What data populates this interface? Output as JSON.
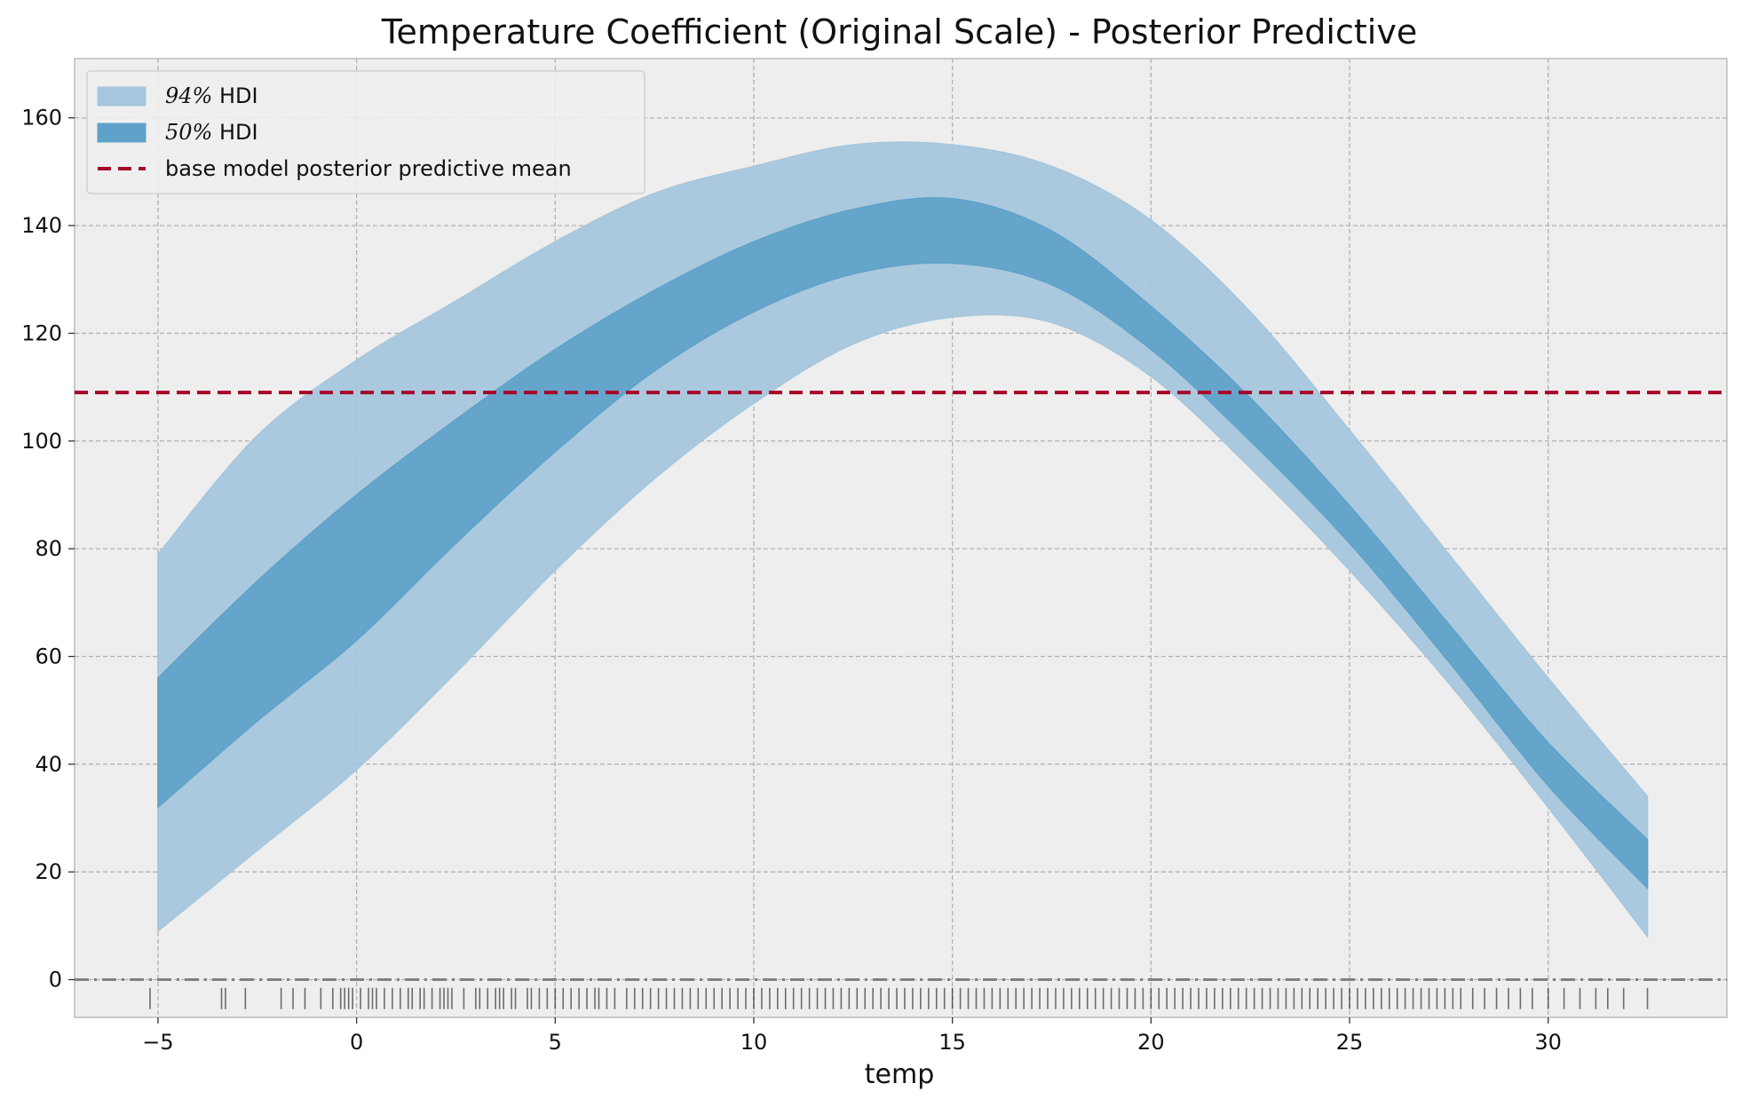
{
  "chart_data": {
    "type": "area",
    "title": "Temperature Coefficient (Original Scale) - Posterior Predictive",
    "xlabel": "temp",
    "ylabel": "",
    "xlim": [
      -7.1,
      34.5
    ],
    "ylim": [
      -7,
      171
    ],
    "xticks": [
      -5,
      0,
      5,
      10,
      15,
      20,
      25,
      30
    ],
    "xtick_labels": [
      "−5",
      "0",
      "5",
      "10",
      "15",
      "20",
      "25",
      "30"
    ],
    "yticks": [
      0,
      20,
      40,
      60,
      80,
      100,
      120,
      140,
      160
    ],
    "ytick_labels": [
      "0",
      "20",
      "40",
      "60",
      "80",
      "100",
      "120",
      "140",
      "160"
    ],
    "grid": true,
    "legend_position": "top-left",
    "legend": [
      {
        "math": "94%",
        "text": " HDI",
        "series": "hdi94"
      },
      {
        "math": "50%",
        "text": " HDI",
        "series": "hdi50"
      },
      {
        "math": "",
        "text": "base model posterior predictive mean",
        "series": "base_mean"
      }
    ],
    "x": [
      -5,
      -2.5,
      0,
      2.5,
      5,
      7.5,
      10,
      12.5,
      15,
      17.5,
      20,
      22.5,
      25,
      27.5,
      30,
      32.5
    ],
    "series": [
      {
        "name": "94% HDI",
        "key": "hdi94",
        "color": "#a5c6dc",
        "lower": [
          9,
          24,
          39,
          57,
          76,
          93,
          107,
          118,
          123,
          122,
          112,
          95,
          76,
          55,
          32,
          8
        ],
        "upper": [
          79,
          101,
          115,
          126,
          137,
          146,
          151,
          155,
          155,
          151,
          141,
          124,
          102,
          79,
          56,
          34
        ]
      },
      {
        "name": "50% HDI",
        "key": "hdi50",
        "color": "#5fa2c9",
        "lower": [
          32,
          48,
          63,
          81,
          98,
          113,
          124,
          131,
          133,
          129,
          117,
          100,
          81,
          59,
          36,
          17
        ],
        "upper": [
          56,
          74,
          90,
          104,
          117,
          128,
          137,
          143,
          145,
          139,
          125,
          108,
          88,
          66,
          44,
          26
        ]
      },
      {
        "name": "base model posterior predictive mean",
        "key": "base_mean",
        "color": "#a60628",
        "style": "dashed",
        "y": 109
      }
    ],
    "reference_line": {
      "y": 0,
      "style": "dashdot",
      "color": "#808080"
    },
    "rug": [
      -5.2,
      -3.4,
      -3.3,
      -2.8,
      -1.9,
      -1.6,
      -1.3,
      -0.9,
      -0.6,
      -0.4,
      -0.3,
      -0.2,
      -0.1,
      0.1,
      0.3,
      0.4,
      0.5,
      0.7,
      0.9,
      1.1,
      1.3,
      1.4,
      1.6,
      1.7,
      1.9,
      2.1,
      2.2,
      2.3,
      2.4,
      2.7,
      3.0,
      3.1,
      3.3,
      3.5,
      3.6,
      3.7,
      3.9,
      4.0,
      4.3,
      4.4,
      4.6,
      4.8,
      5.0,
      5.2,
      5.4,
      5.6,
      5.8,
      6.0,
      6.1,
      6.3,
      6.5,
      6.8,
      7.0,
      7.2,
      7.4,
      7.6,
      7.8,
      8.0,
      8.2,
      8.4,
      8.6,
      8.8,
      9.0,
      9.2,
      9.4,
      9.6,
      9.8,
      10.0,
      10.2,
      10.4,
      10.6,
      10.8,
      11.0,
      11.2,
      11.4,
      11.6,
      11.8,
      12.0,
      12.2,
      12.4,
      12.6,
      12.8,
      13.0,
      13.2,
      13.4,
      13.6,
      13.8,
      14.0,
      14.2,
      14.4,
      14.6,
      14.8,
      15.0,
      15.2,
      15.4,
      15.6,
      15.8,
      16.0,
      16.2,
      16.4,
      16.6,
      16.8,
      17.0,
      17.2,
      17.4,
      17.6,
      17.8,
      18.0,
      18.2,
      18.4,
      18.6,
      18.8,
      19.0,
      19.2,
      19.4,
      19.6,
      19.8,
      20.0,
      20.2,
      20.4,
      20.6,
      20.8,
      21.0,
      21.2,
      21.4,
      21.6,
      21.8,
      22.0,
      22.2,
      22.4,
      22.6,
      22.8,
      23.0,
      23.2,
      23.4,
      23.6,
      23.8,
      24.0,
      24.2,
      24.4,
      24.6,
      24.8,
      25.0,
      25.2,
      25.4,
      25.6,
      25.8,
      26.0,
      26.2,
      26.4,
      26.6,
      26.8,
      27.0,
      27.2,
      27.4,
      27.6,
      27.8,
      28.1,
      28.4,
      28.7,
      29.0,
      29.3,
      29.6,
      30.0,
      30.4,
      30.8,
      31.2,
      31.5,
      31.9,
      32.5
    ]
  }
}
